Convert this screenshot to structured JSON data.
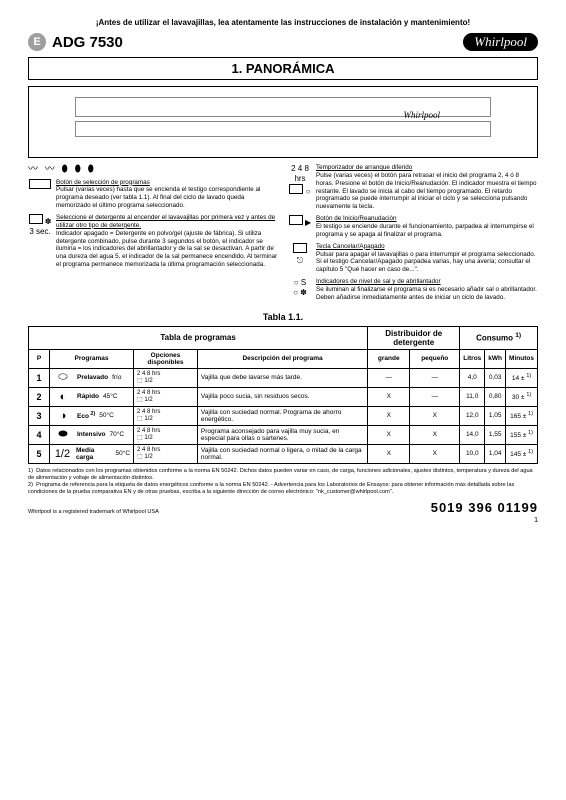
{
  "warning": "¡Antes de utilizar el lavavajillas, lea atentamente las instrucciones de instalación y mantenimiento!",
  "badge": "E",
  "model": "ADG 7530",
  "brand": "Whirlpool",
  "section_title": "1. PANORÁMICA",
  "icons_row": "〰  〰  ⬮  ⬮  ⬮",
  "left_col": {
    "prog_sel_title": "Botón de selección de programas",
    "prog_sel_body": "Pulsar (varias veces) hasta que se encienda el testigo correspondiente al programa deseado (ver tabla 1.1). Al final del ciclo de lavado queda memorizado el último programa seleccionado.",
    "det_title": "Seleccione el detergente al encender el lavavajillas por primera vez y antes de utilizar otro tipo de detergente.",
    "det_body": "Indicador apagado = Detergente en polvo/gel (ajuste de fábrica). Si utiliza detergente combinado, pulse durante 3 segundos el botón, el indicador se ilumina = los indicadores del abrillantador y de la sal se desactivan. A partir de una dureza del agua 5, el indicador de la sal permanece encendido. Al terminar el programa permanece memorizada la última programación seleccionada.",
    "det_sidelabel": "3 sec."
  },
  "right_col": {
    "timer_nums": "2 4 8 hrs",
    "timer_title": "Temporizador de arranque diferido",
    "timer_body": "Pulse (varias veces) el botón para retrasar el inicio del programa 2, 4 ó 8 horas. Presione el botón de Inicio/Reanudación. El indicador muestra el tiempo restante. El lavado se inicia al cabo del tiempo programado. El retardo programado se puede interrumpir al iniciar el ciclo y se selecciona pulsando nuevamente la tecla.",
    "start_title": "Botón de Inicio/Reanudación",
    "start_body": "El testigo se enciende durante el funcionamiento, parpadea al interrumpirse el programa y se apaga al finalizar el programa.",
    "cancel_title": "Tecla Cancelar/Apagado",
    "cancel_body": "Pulsar para apagar el lavavajillas o para interrumpir el programa seleccionado. Si el testigo Cancelar/Apagado parpadea varias, hay una avería; consultar el capítulo 5 \"Qué hacer en caso de...\".",
    "ind_title": "Indicadores de nivel de sal y de abrillantador",
    "ind_body": "Se iluminan al finalizarse el programa si es necesario añadir sal o abrillantador. Deben añadirse inmediatamente antes de iniciar un ciclo de lavado."
  },
  "table_caption": "Tabla 1.1.",
  "headers": {
    "group_prog": "Tabla de programas",
    "group_det": "Distribuidor de detergente",
    "group_cons": "Consumo",
    "cons_sup": "1)",
    "P": "P",
    "programas": "Programas",
    "opciones": "Opciones disponibles",
    "desc": "Descripción del programa",
    "grande": "grande",
    "pequeno": "pequeño",
    "litros": "Litros",
    "kwh": "kWh",
    "minutos": "Minutos"
  },
  "opt_icons_text": "2 4 8 hrs\n⬚ 1/2",
  "rows": [
    {
      "n": "1",
      "icon": "⬭",
      "name": "Prelavado",
      "temp": "frío",
      "desc": "Vajilla que debe lavarse más tarde.",
      "grande": "—",
      "pequeno": "—",
      "litros": "4,0",
      "kwh": "0,03",
      "min": "14 ±",
      "min_sup": "1)"
    },
    {
      "n": "2",
      "icon": "◐",
      "name": "Rápido",
      "temp": "45°C",
      "desc": "Vajilla poco sucia, sin residuos secos.",
      "grande": "X",
      "pequeno": "—",
      "litros": "11,0",
      "kwh": "0,80",
      "min": "30 ±",
      "min_sup": "1)"
    },
    {
      "n": "3",
      "icon": "◑",
      "name": "Eco",
      "name_sup": "2)",
      "temp": "50°C",
      "desc": "Vajilla con suciedad normal. Programa de ahorro energético.",
      "grande": "X",
      "pequeno": "X",
      "litros": "12,0",
      "kwh": "1,05",
      "min": "165 ±",
      "min_sup": "1)"
    },
    {
      "n": "4",
      "icon": "⬬",
      "name": "Intensivo",
      "temp": "70°C",
      "desc": "Programa aconsejado para vajilla muy sucia, en especial para ollas o sartenes.",
      "grande": "X",
      "pequeno": "X",
      "litros": "14,0",
      "kwh": "1,55",
      "min": "155 ±",
      "min_sup": "1)"
    },
    {
      "n": "5",
      "icon": "1/2",
      "name": "Media carga",
      "temp": "50°C",
      "desc": "Vajilla con suciedad normal o ligera, o mitad de la carga normal.",
      "grande": "X",
      "pequeno": "X",
      "litros": "10,0",
      "kwh": "1,04",
      "min": "145 ±",
      "min_sup": "1)"
    }
  ],
  "footnote1_label": "1)",
  "footnote1": "Datos relacionados con los programas obtenidos conforme a la norma EN 50242. Dichos datos pueden variar en caso, de carga, funciones adicionales, ajustes distintos, temperatura y dureza del agua de alimentación y voltaje de alimentación distintos.",
  "footnote2_label": "2)",
  "footnote2": "Programa de referencia para la etiqueta de datos energéticos conforme a la norma EN 50242. - Advertencia para los Laboratorios de Ensayos: para obtener información más detallada sobre las condiciones de la prueba comparativa EN y de otras pruebas, escriba a la siguiente dirección de correo electrónico: \"nk_customer@whirlpool.com\".",
  "footer_left": "Whirlpool is a registered trademark of Whirlpool USA",
  "footer_code": "5019 396 01199",
  "page_num": "1"
}
